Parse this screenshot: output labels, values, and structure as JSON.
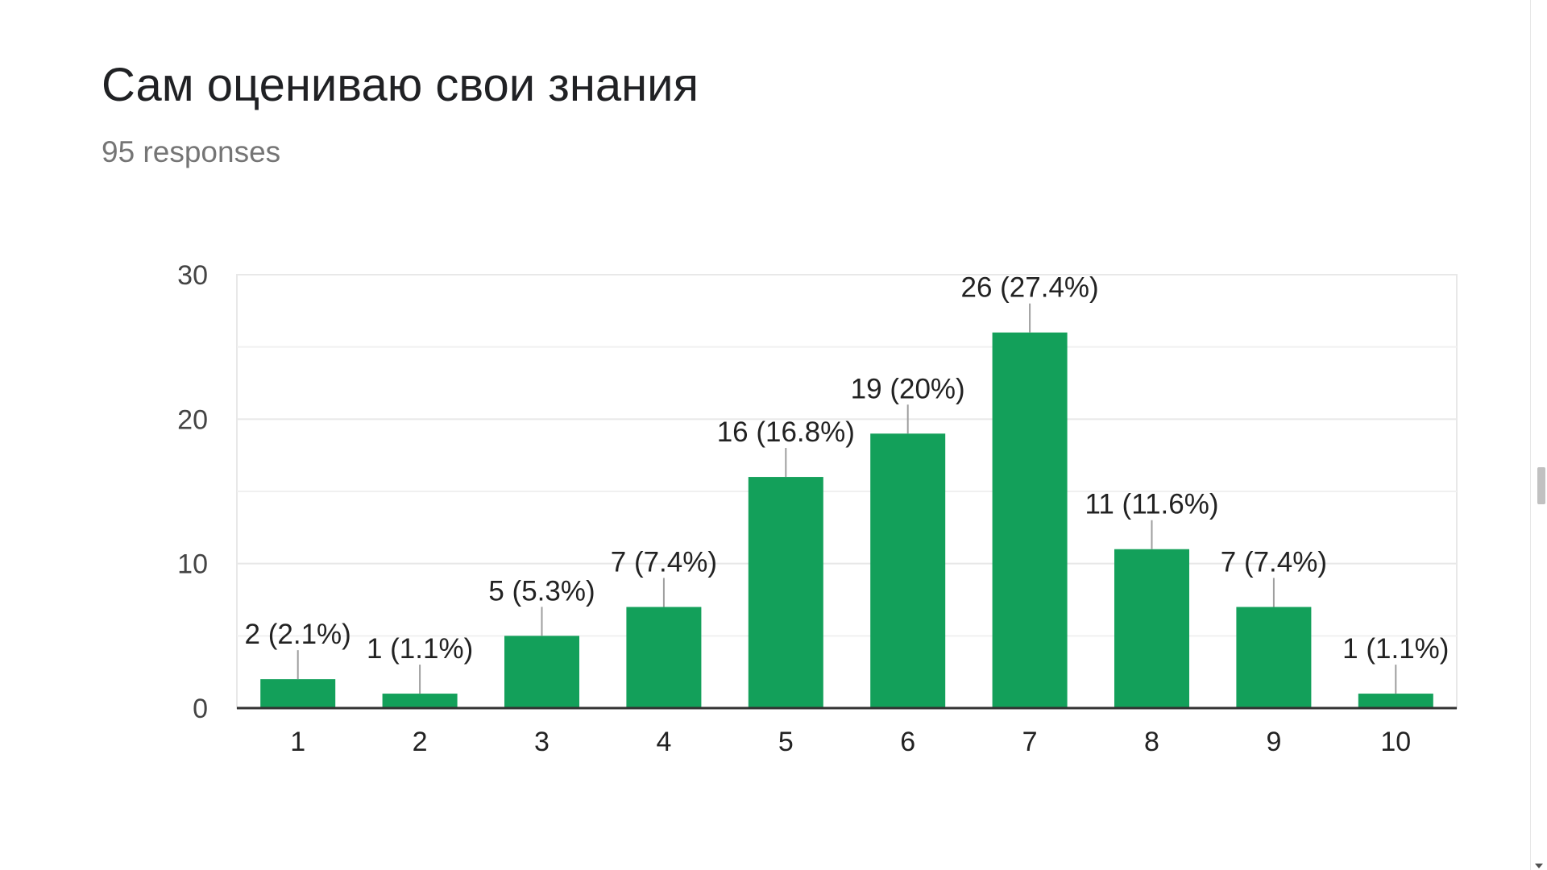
{
  "header": {
    "title": "Сам оцениваю свои знания",
    "subtitle": "95 responses"
  },
  "colors": {
    "bar": "#13a05a",
    "gridline": "#e8e8e8",
    "axis": "#333333",
    "label": "#222222",
    "tick": "#444444",
    "leader": "#9e9e9e"
  },
  "chart_data": {
    "type": "bar",
    "title": "Сам оцениваю свои знания",
    "categories": [
      "1",
      "2",
      "3",
      "4",
      "5",
      "6",
      "7",
      "8",
      "9",
      "10"
    ],
    "values": [
      2,
      1,
      5,
      7,
      16,
      19,
      26,
      11,
      7,
      1
    ],
    "data_labels": [
      "2 (2.1%)",
      "1 (1.1%)",
      "5 (5.3%)",
      "7 (7.4%)",
      "16 (16.8%)",
      "19 (20%)",
      "26 (27.4%)",
      "11 (11.6%)",
      "7 (7.4%)",
      "1 (1.1%)"
    ],
    "ylim": [
      0,
      30
    ],
    "yticks": [
      0,
      10,
      20,
      30
    ],
    "minor_grid": [
      5,
      15,
      25
    ],
    "grid": true,
    "legend": "none",
    "xlabel": "",
    "ylabel": ""
  }
}
